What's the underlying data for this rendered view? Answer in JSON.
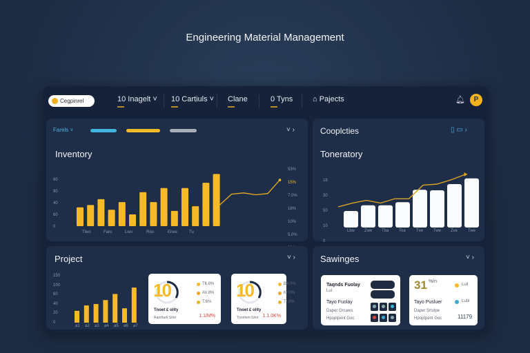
{
  "title": "Engineering Material Management",
  "header": {
    "logo": "Cegpinrel",
    "nav": [
      "10 Inagelt ˅",
      "10 Cartiuls ˅",
      "Clane",
      "0 Tyns",
      "⌂ Pajects"
    ],
    "avatar": "P"
  },
  "inventory": {
    "filter": "Farels ˅",
    "title": "Inventory",
    "ctrl": "˅ ›",
    "y_left": [
      "60",
      "90",
      "40",
      "60",
      "0"
    ],
    "y_right": [
      "53%",
      "15%",
      "7.0%",
      "18%",
      "10%",
      "5.0%",
      "20%"
    ],
    "x_labels": [
      "Tlwo",
      "Faro",
      "Lwo",
      "Roo",
      "Erwe",
      "Tu"
    ]
  },
  "capacities": {
    "title": "Cooplcties",
    "ctrl": "▯ ▭ ›",
    "chart_title": "Toneratory",
    "y": [
      "18",
      "30",
      "50",
      "10",
      "0"
    ],
    "x_labels": [
      "Lbw",
      "Zwe",
      "Tba",
      "Toa",
      "Tve",
      "Twe",
      "Zve",
      "Twe"
    ]
  },
  "project": {
    "title": "Project",
    "ctrl": "˅ ›",
    "y": [
      "150",
      "100",
      "60",
      "40",
      "20",
      "0"
    ],
    "x_labels": [
      "a1",
      "a2",
      "a3",
      "a4",
      "a5",
      "a6",
      "a7"
    ],
    "cards": [
      {
        "big": "10",
        "legend": [
          "T6.8%",
          "AV.8%",
          "T.6%"
        ],
        "name": "Tnoet £ olity",
        "sub": "Raortlarti Srlor",
        "value": "1.1/M%"
      },
      {
        "big": "10",
        "legend": [
          "B4.0%",
          "K/.0%",
          "T/.0%"
        ],
        "name": "Tnoet £ olity",
        "sub": "Tnortlem Srlor",
        "value": "1.1.0K%"
      }
    ]
  },
  "savings": {
    "title": "Sawinges",
    "ctrl": "˅ ›",
    "card1": {
      "l1": "Taqnds Fuolay",
      "l2": "Lul",
      "l3": "Tayo Fuolay",
      "l4": "Daper Grcaws",
      "l5": "Hpoptpent Goc"
    },
    "card2": {
      "big": "31",
      "pct": "%/n",
      "legend": [
        "Lull",
        "Lubl"
      ],
      "l1": "Tayo Pusluer",
      "l2": "Daper Srtulpe",
      "l3": "Hpoptpent Goc",
      "value": "11179"
    }
  },
  "colors": {
    "accent": "#f6b928",
    "blue": "#3fb4dc",
    "gray": "#a9adb5",
    "red": "#e2413c"
  },
  "chart_data": [
    {
      "type": "bar",
      "title": "Inventory",
      "values": [
        32,
        36,
        46,
        28,
        41,
        20,
        58,
        41,
        65,
        26,
        65,
        34,
        74,
        89
      ],
      "line": [
        34,
        52,
        54,
        51,
        53,
        75
      ],
      "ylim": [
        0,
        100
      ]
    },
    {
      "type": "bar",
      "title": "Toneratory",
      "values": [
        32,
        43,
        43,
        49,
        73,
        72,
        84,
        95
      ],
      "line": [
        38,
        45,
        50,
        45,
        53,
        53,
        78,
        80,
        88,
        98
      ],
      "ylim": [
        0,
        100
      ]
    },
    {
      "type": "bar",
      "title": "Project",
      "values": [
        33,
        48,
        52,
        63,
        80,
        40,
        98
      ],
      "ylim": [
        0,
        100
      ]
    }
  ]
}
